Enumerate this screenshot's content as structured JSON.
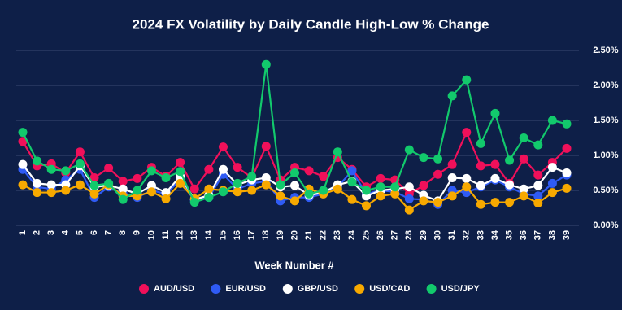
{
  "chart_data": {
    "type": "line",
    "title": "2024 FX Volatility by Daily Candle High-Low % Change",
    "x_label": "Week Number #",
    "categories": [
      1,
      2,
      3,
      4,
      5,
      6,
      7,
      8,
      9,
      10,
      11,
      12,
      13,
      14,
      15,
      16,
      17,
      18,
      19,
      20,
      21,
      22,
      23,
      24,
      25,
      26,
      27,
      28,
      29,
      30,
      31,
      32,
      33,
      34,
      35,
      36,
      37,
      38,
      39
    ],
    "series": [
      {
        "name": "AUD/USD",
        "color": "#f0105a",
        "values": [
          1.2,
          0.85,
          0.88,
          0.75,
          1.05,
          0.68,
          0.82,
          0.63,
          0.67,
          0.83,
          0.7,
          0.9,
          0.52,
          0.8,
          1.12,
          0.83,
          0.68,
          1.13,
          0.65,
          0.83,
          0.78,
          0.7,
          0.97,
          0.8,
          0.55,
          0.67,
          0.65,
          0.45,
          0.57,
          0.73,
          0.87,
          1.33,
          0.85,
          0.87,
          0.6,
          0.95,
          0.72,
          0.9,
          1.1
        ]
      },
      {
        "name": "EUR/USD",
        "color": "#2f5bf5",
        "values": [
          0.8,
          0.55,
          0.52,
          0.65,
          0.8,
          0.4,
          0.55,
          0.45,
          0.4,
          0.5,
          0.45,
          0.65,
          0.35,
          0.4,
          0.73,
          0.52,
          0.6,
          0.63,
          0.35,
          0.4,
          0.4,
          0.45,
          0.55,
          0.78,
          0.45,
          0.5,
          0.48,
          0.38,
          0.37,
          0.3,
          0.5,
          0.47,
          0.55,
          0.65,
          0.55,
          0.45,
          0.42,
          0.6,
          0.72
        ]
      },
      {
        "name": "GBP/USD",
        "color": "#ffffff",
        "values": [
          0.87,
          0.6,
          0.58,
          0.58,
          0.85,
          0.55,
          0.57,
          0.52,
          0.45,
          0.57,
          0.47,
          0.7,
          0.37,
          0.43,
          0.8,
          0.58,
          0.65,
          0.68,
          0.55,
          0.57,
          0.43,
          0.47,
          0.58,
          0.63,
          0.42,
          0.5,
          0.52,
          0.55,
          0.43,
          0.35,
          0.68,
          0.67,
          0.57,
          0.67,
          0.58,
          0.52,
          0.57,
          0.83,
          0.75
        ]
      },
      {
        "name": "USD/CAD",
        "color": "#f7a900",
        "values": [
          0.58,
          0.47,
          0.47,
          0.5,
          0.58,
          0.45,
          0.58,
          0.42,
          0.42,
          0.48,
          0.38,
          0.6,
          0.38,
          0.52,
          0.5,
          0.48,
          0.5,
          0.58,
          0.42,
          0.35,
          0.52,
          0.45,
          0.52,
          0.37,
          0.28,
          0.42,
          0.45,
          0.22,
          0.35,
          0.33,
          0.42,
          0.55,
          0.3,
          0.33,
          0.33,
          0.42,
          0.32,
          0.47,
          0.53
        ]
      },
      {
        "name": "USD/JPY",
        "color": "#12c96c",
        "values": [
          1.33,
          0.92,
          0.8,
          0.78,
          0.88,
          0.57,
          0.6,
          0.37,
          0.5,
          0.78,
          0.68,
          0.77,
          0.33,
          0.4,
          0.48,
          0.6,
          0.7,
          2.3,
          0.58,
          0.75,
          0.45,
          0.5,
          1.05,
          0.62,
          0.5,
          0.55,
          0.55,
          1.08,
          0.97,
          0.95,
          1.85,
          2.08,
          1.17,
          1.6,
          0.93,
          1.25,
          1.15,
          1.5,
          1.45
        ]
      }
    ],
    "ylim": [
      0,
      2.5
    ],
    "yticks": [
      {
        "value": 0,
        "label": "0.00%"
      },
      {
        "value": 0.5,
        "label": "0.50%"
      },
      {
        "value": 1,
        "label": "1.00%"
      },
      {
        "value": 1.5,
        "label": "1.50%"
      },
      {
        "value": 2,
        "label": "2.00%"
      },
      {
        "value": 2.5,
        "label": "2.50%"
      }
    ],
    "grid": true,
    "legend": "bottom"
  }
}
